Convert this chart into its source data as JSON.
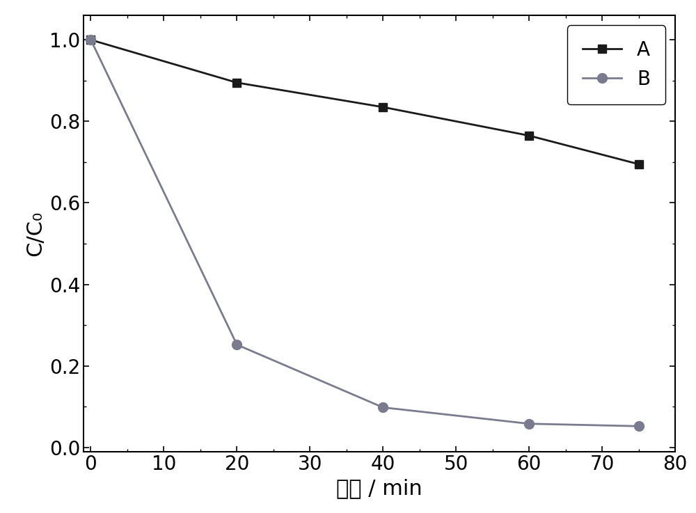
{
  "series_A": {
    "x": [
      0,
      20,
      40,
      60,
      75
    ],
    "y": [
      1.0,
      0.895,
      0.835,
      0.765,
      0.695
    ],
    "color": "#1a1a1a",
    "marker": "s",
    "marker_size": 9,
    "line_width": 2.0,
    "label": "A"
  },
  "series_B": {
    "x": [
      0,
      20,
      40,
      60,
      75
    ],
    "y": [
      1.0,
      0.252,
      0.098,
      0.058,
      0.052
    ],
    "color": "#7b7b8f",
    "marker": "o",
    "marker_size": 10,
    "line_width": 2.0,
    "label": "B"
  },
  "xlabel": "时间 / min",
  "ylabel": "C/C₀",
  "xlim": [
    -1,
    80
  ],
  "ylim": [
    -0.01,
    1.06
  ],
  "xticks": [
    0,
    10,
    20,
    30,
    40,
    50,
    60,
    70,
    80
  ],
  "yticks": [
    0.0,
    0.2,
    0.4,
    0.6,
    0.8,
    1.0
  ],
  "background_color": "#ffffff",
  "legend_loc": "upper right",
  "tick_fontsize": 20,
  "label_fontsize": 22,
  "legend_fontsize": 20,
  "spine_linewidth": 1.5
}
